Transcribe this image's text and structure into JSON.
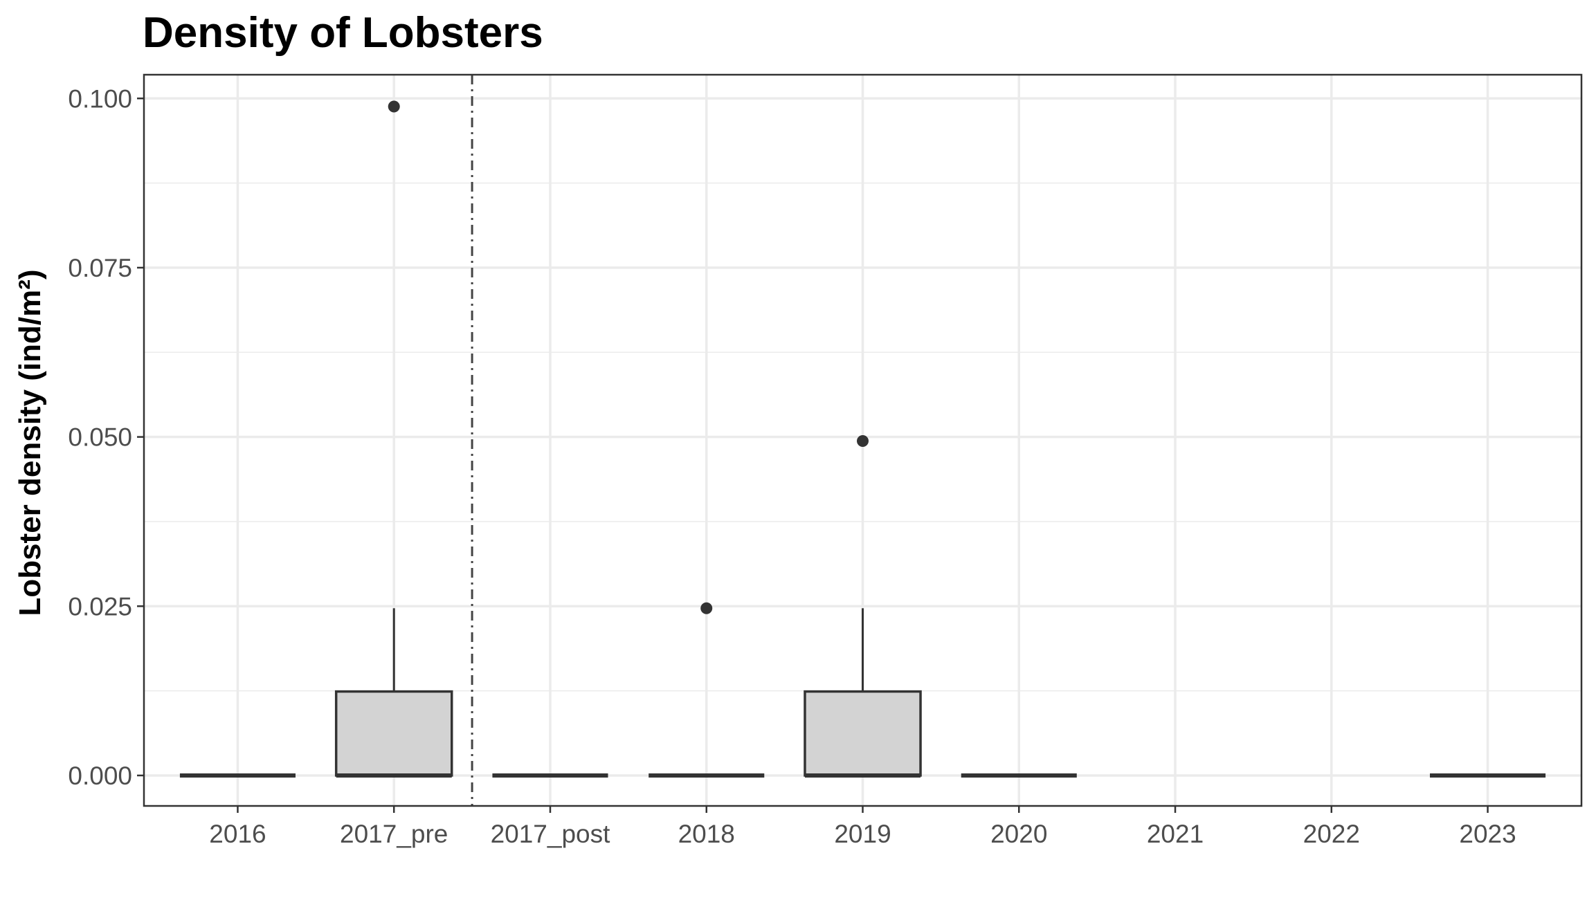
{
  "chart_data": {
    "type": "box",
    "title": "Density of Lobsters",
    "xlabel": "",
    "ylabel": "Lobster density (ind/m²)",
    "ylim": [
      -0.0045,
      0.1035
    ],
    "yticks": [
      0.0,
      0.025,
      0.05,
      0.075,
      0.1
    ],
    "ytick_labels": [
      "0.000",
      "0.025",
      "0.050",
      "0.075",
      "0.100"
    ],
    "categories": [
      "2016",
      "2017_pre",
      "2017_post",
      "2018",
      "2019",
      "2020",
      "2021",
      "2022",
      "2023"
    ],
    "boxes": [
      {
        "category": "2016",
        "min": 0.0,
        "q1": 0.0,
        "median": 0.0,
        "q3": 0.0,
        "max": 0.0,
        "outliers": []
      },
      {
        "category": "2017_pre",
        "min": 0.0,
        "q1": 0.0,
        "median": 0.0,
        "q3": 0.0124,
        "max": 0.0247,
        "outliers": [
          0.0988
        ]
      },
      {
        "category": "2017_post",
        "min": 0.0,
        "q1": 0.0,
        "median": 0.0,
        "q3": 0.0,
        "max": 0.0,
        "outliers": []
      },
      {
        "category": "2018",
        "min": 0.0,
        "q1": 0.0,
        "median": 0.0,
        "q3": 0.0,
        "max": 0.0,
        "outliers": [
          0.0247
        ]
      },
      {
        "category": "2019",
        "min": 0.0,
        "q1": 0.0,
        "median": 0.0,
        "q3": 0.0124,
        "max": 0.0247,
        "outliers": [
          0.0494
        ]
      },
      {
        "category": "2020",
        "min": 0.0,
        "q1": 0.0,
        "median": 0.0,
        "q3": 0.0,
        "max": 0.0,
        "outliers": []
      },
      {
        "category": "2023",
        "min": 0.0,
        "q1": 0.0,
        "median": 0.0,
        "q3": 0.0,
        "max": 0.0,
        "outliers": []
      }
    ],
    "reference_line": {
      "orientation": "vertical",
      "between": [
        "2017_pre",
        "2017_post"
      ],
      "style": "dashdot"
    },
    "grid": true,
    "colors": {
      "box_fill": "#d3d3d3",
      "box_stroke": "#333333",
      "grid": "#ebebeb",
      "panel_border": "#333333",
      "tick_text": "#4d4d4d"
    }
  }
}
